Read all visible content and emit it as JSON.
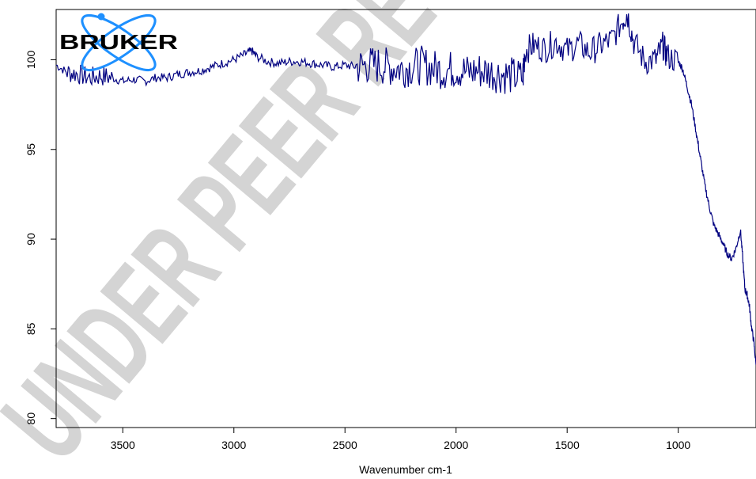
{
  "logo": {
    "text": "BRUKER",
    "accent_color": "#1e90ff",
    "text_color": "#000000"
  },
  "watermark": {
    "text": "UNDER PEER REVIEW"
  },
  "chart_data": {
    "type": "line",
    "title": "",
    "xlabel": "Wavenumber cm-1",
    "ylabel": "",
    "xlim": [
      3800,
      650
    ],
    "ylim": [
      79.5,
      102.8
    ],
    "x_reversed": true,
    "grid": false,
    "line_color": "#000080",
    "xticks": [
      3500,
      3000,
      2500,
      2000,
      1500,
      1000
    ],
    "yticks": [
      80,
      85,
      90,
      95,
      100
    ],
    "series": [
      {
        "x": [
          3800,
          3750,
          3700,
          3650,
          3600,
          3550,
          3500,
          3450,
          3400,
          3350,
          3300,
          3250,
          3200,
          3150,
          3100,
          3050,
          3000,
          2950,
          2920,
          2900,
          2850,
          2800,
          2750,
          2700,
          2650,
          2600,
          2550,
          2500,
          2450,
          2400,
          2350,
          2300,
          2250,
          2200,
          2150,
          2100,
          2050,
          2000,
          1950,
          1900,
          1850,
          1800,
          1750,
          1700,
          1690,
          1650,
          1600,
          1550,
          1500,
          1450,
          1400,
          1350,
          1300,
          1250,
          1230,
          1200,
          1150,
          1100,
          1070,
          1050,
          1000,
          980,
          960,
          940,
          920,
          900,
          880,
          860,
          840,
          820,
          800,
          780,
          760,
          740,
          720,
          710,
          700,
          690,
          680,
          670,
          660,
          650
        ],
        "y": [
          99.7,
          99.3,
          99.2,
          99.0,
          99.1,
          99.0,
          98.8,
          98.9,
          98.8,
          99.0,
          99.0,
          99.2,
          99.3,
          99.4,
          99.6,
          99.8,
          100.0,
          100.3,
          100.5,
          100.2,
          99.9,
          99.8,
          99.9,
          99.9,
          99.8,
          99.7,
          99.6,
          99.7,
          99.6,
          99.7,
          99.7,
          99.6,
          99.5,
          99.6,
          99.7,
          99.5,
          99.4,
          99.5,
          99.3,
          99.4,
          99.3,
          99.2,
          99.1,
          99.0,
          100.5,
          100.8,
          100.6,
          101.0,
          100.5,
          100.9,
          100.4,
          100.8,
          101.1,
          102.2,
          102.6,
          101.0,
          99.9,
          100.0,
          100.8,
          100.2,
          99.9,
          99.5,
          98.5,
          97.5,
          96.0,
          94.5,
          93.0,
          91.8,
          90.8,
          90.3,
          89.8,
          89.2,
          88.9,
          89.5,
          90.5,
          89.0,
          87.2,
          86.9,
          86.3,
          85.1,
          84.3,
          83.0
        ]
      }
    ]
  }
}
